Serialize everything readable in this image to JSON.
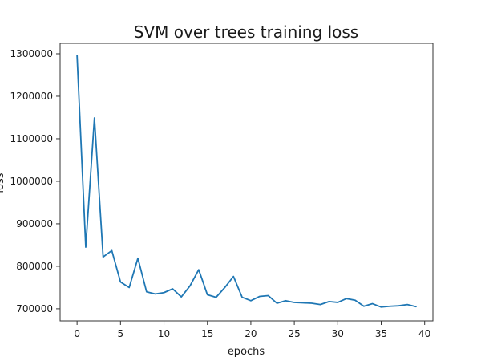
{
  "colors": {
    "series": "#1f77b4",
    "axis": "#333333",
    "text": "#1a1a1a",
    "background": "#ffffff"
  },
  "chart_data": {
    "type": "line",
    "title": "SVM over trees training loss",
    "xlabel": "epochs",
    "ylabel": "loss",
    "xlim": [
      -1.95,
      40.95
    ],
    "ylim": [
      671500,
      1324500
    ],
    "xticks": [
      0,
      5,
      10,
      15,
      20,
      25,
      30,
      35,
      40
    ],
    "yticks": [
      700000,
      800000,
      900000,
      1000000,
      1100000,
      1200000,
      1300000
    ],
    "xtick_labels": [
      "0",
      "5",
      "10",
      "15",
      "20",
      "25",
      "30",
      "35",
      "40"
    ],
    "ytick_labels": [
      "700000",
      "800000",
      "900000",
      "1000000",
      "1100000",
      "1200000",
      "1300000"
    ],
    "grid": false,
    "series": [
      {
        "color": "#1f77b4",
        "x": [
          0,
          1,
          2,
          3,
          4,
          5,
          6,
          7,
          8,
          9,
          10,
          11,
          12,
          13,
          14,
          15,
          16,
          17,
          18,
          19,
          20,
          21,
          22,
          23,
          24,
          25,
          26,
          27,
          28,
          29,
          30,
          31,
          32,
          33,
          34,
          35,
          36,
          37,
          38,
          39
        ],
        "y": [
          1296000,
          845000,
          1149000,
          822000,
          837000,
          763000,
          750000,
          819000,
          740000,
          735000,
          738000,
          747000,
          728000,
          754000,
          792000,
          733000,
          727000,
          750000,
          776000,
          727000,
          719000,
          729000,
          731000,
          713000,
          719000,
          715000,
          714000,
          713000,
          710000,
          717000,
          715000,
          724000,
          720000,
          706000,
          712000,
          704000,
          706000,
          707000,
          710000,
          705000
        ]
      }
    ]
  }
}
